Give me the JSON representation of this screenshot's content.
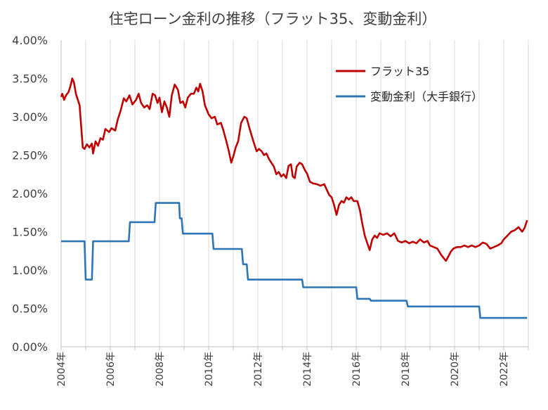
{
  "chart_data": {
    "type": "line",
    "title": "住宅ローン金利の推移（フラット35、変動金利）",
    "xlabel": "",
    "ylabel": "",
    "xlim": [
      2004,
      2023
    ],
    "ylim": [
      0,
      0.04
    ],
    "y_ticks": [
      0,
      0.005,
      0.01,
      0.015,
      0.02,
      0.025,
      0.03,
      0.035,
      0.04
    ],
    "y_tick_labels": [
      "0.00%",
      "0.50%",
      "1.00%",
      "1.50%",
      "2.00%",
      "2.50%",
      "3.00%",
      "3.50%",
      "4.00%"
    ],
    "x_tick_labels": [
      {
        "x": 2004,
        "label": "2004年"
      },
      {
        "x": 2006,
        "label": "2006年"
      },
      {
        "x": 2008,
        "label": "2008年"
      },
      {
        "x": 2010,
        "label": "2010年"
      },
      {
        "x": 2012,
        "label": "2012年"
      },
      {
        "x": 2014,
        "label": "2014年"
      },
      {
        "x": 2016,
        "label": "2016年"
      },
      {
        "x": 2018,
        "label": "2018年"
      },
      {
        "x": 2020,
        "label": "2020年"
      },
      {
        "x": 2022,
        "label": "2022年"
      }
    ],
    "grid": "vertical",
    "legend_position": "top-right",
    "series": [
      {
        "name": "フラット35",
        "color": "#c00000",
        "points": [
          [
            2004.0,
            0.0326
          ],
          [
            2004.05,
            0.033
          ],
          [
            2004.12,
            0.0322
          ],
          [
            2004.2,
            0.0328
          ],
          [
            2004.3,
            0.0332
          ],
          [
            2004.38,
            0.034
          ],
          [
            2004.45,
            0.035
          ],
          [
            2004.52,
            0.0345
          ],
          [
            2004.6,
            0.033
          ],
          [
            2004.75,
            0.0315
          ],
          [
            2004.88,
            0.026
          ],
          [
            2004.95,
            0.0258
          ],
          [
            2005.05,
            0.0264
          ],
          [
            2005.15,
            0.026
          ],
          [
            2005.25,
            0.0265
          ],
          [
            2005.3,
            0.0252
          ],
          [
            2005.4,
            0.0268
          ],
          [
            2005.5,
            0.0262
          ],
          [
            2005.6,
            0.0272
          ],
          [
            2005.7,
            0.027
          ],
          [
            2005.8,
            0.0284
          ],
          [
            2005.95,
            0.028
          ],
          [
            2006.05,
            0.0285
          ],
          [
            2006.2,
            0.0282
          ],
          [
            2006.3,
            0.0296
          ],
          [
            2006.42,
            0.0308
          ],
          [
            2006.55,
            0.0324
          ],
          [
            2006.65,
            0.032
          ],
          [
            2006.78,
            0.0328
          ],
          [
            2006.9,
            0.0316
          ],
          [
            2007.05,
            0.0322
          ],
          [
            2007.15,
            0.033
          ],
          [
            2007.25,
            0.0318
          ],
          [
            2007.38,
            0.0312
          ],
          [
            2007.5,
            0.0315
          ],
          [
            2007.6,
            0.031
          ],
          [
            2007.72,
            0.033
          ],
          [
            2007.82,
            0.0328
          ],
          [
            2007.92,
            0.0318
          ],
          [
            2008.0,
            0.0325
          ],
          [
            2008.1,
            0.0306
          ],
          [
            2008.2,
            0.032
          ],
          [
            2008.3,
            0.0312
          ],
          [
            2008.4,
            0.03
          ],
          [
            2008.5,
            0.0328
          ],
          [
            2008.62,
            0.0342
          ],
          [
            2008.75,
            0.0335
          ],
          [
            2008.85,
            0.0318
          ],
          [
            2008.95,
            0.032
          ],
          [
            2009.05,
            0.0312
          ],
          [
            2009.15,
            0.0325
          ],
          [
            2009.28,
            0.033
          ],
          [
            2009.4,
            0.033
          ],
          [
            2009.5,
            0.0338
          ],
          [
            2009.58,
            0.0333
          ],
          [
            2009.65,
            0.0343
          ],
          [
            2009.75,
            0.0333
          ],
          [
            2009.85,
            0.0315
          ],
          [
            2010.0,
            0.0303
          ],
          [
            2010.12,
            0.0298
          ],
          [
            2010.25,
            0.03
          ],
          [
            2010.35,
            0.029
          ],
          [
            2010.5,
            0.0292
          ],
          [
            2010.6,
            0.0282
          ],
          [
            2010.72,
            0.0268
          ],
          [
            2010.82,
            0.0255
          ],
          [
            2010.92,
            0.024
          ],
          [
            2011.0,
            0.0248
          ],
          [
            2011.1,
            0.026
          ],
          [
            2011.2,
            0.0268
          ],
          [
            2011.32,
            0.0292
          ],
          [
            2011.45,
            0.03
          ],
          [
            2011.55,
            0.0298
          ],
          [
            2011.65,
            0.0286
          ],
          [
            2011.75,
            0.0275
          ],
          [
            2011.85,
            0.0265
          ],
          [
            2011.95,
            0.0255
          ],
          [
            2012.05,
            0.0258
          ],
          [
            2012.15,
            0.0255
          ],
          [
            2012.25,
            0.025
          ],
          [
            2012.35,
            0.0252
          ],
          [
            2012.45,
            0.0245
          ],
          [
            2012.55,
            0.024
          ],
          [
            2012.65,
            0.0235
          ],
          [
            2012.75,
            0.0225
          ],
          [
            2012.85,
            0.0228
          ],
          [
            2012.95,
            0.0222
          ],
          [
            2013.05,
            0.0225
          ],
          [
            2013.15,
            0.022
          ],
          [
            2013.25,
            0.0236
          ],
          [
            2013.35,
            0.0238
          ],
          [
            2013.42,
            0.0222
          ],
          [
            2013.5,
            0.022
          ],
          [
            2013.58,
            0.0235
          ],
          [
            2013.7,
            0.024
          ],
          [
            2013.8,
            0.0238
          ],
          [
            2013.92,
            0.023
          ],
          [
            2014.0,
            0.0226
          ],
          [
            2014.12,
            0.0215
          ],
          [
            2014.25,
            0.0213
          ],
          [
            2014.4,
            0.0212
          ],
          [
            2014.55,
            0.021
          ],
          [
            2014.7,
            0.0212
          ],
          [
            2014.8,
            0.0205
          ],
          [
            2014.9,
            0.0198
          ],
          [
            2015.0,
            0.0195
          ],
          [
            2015.1,
            0.0185
          ],
          [
            2015.2,
            0.0172
          ],
          [
            2015.3,
            0.0185
          ],
          [
            2015.4,
            0.019
          ],
          [
            2015.5,
            0.0188
          ],
          [
            2015.6,
            0.0195
          ],
          [
            2015.7,
            0.0192
          ],
          [
            2015.8,
            0.0195
          ],
          [
            2015.9,
            0.019
          ],
          [
            2016.05,
            0.019
          ],
          [
            2016.15,
            0.0178
          ],
          [
            2016.25,
            0.016
          ],
          [
            2016.35,
            0.0145
          ],
          [
            2016.45,
            0.0135
          ],
          [
            2016.55,
            0.0126
          ],
          [
            2016.65,
            0.014
          ],
          [
            2016.75,
            0.0145
          ],
          [
            2016.85,
            0.0142
          ],
          [
            2016.95,
            0.0148
          ],
          [
            2017.1,
            0.0146
          ],
          [
            2017.25,
            0.0148
          ],
          [
            2017.4,
            0.0144
          ],
          [
            2017.55,
            0.0148
          ],
          [
            2017.7,
            0.0138
          ],
          [
            2017.85,
            0.0136
          ],
          [
            2018.0,
            0.0138
          ],
          [
            2018.15,
            0.0135
          ],
          [
            2018.3,
            0.0137
          ],
          [
            2018.45,
            0.0135
          ],
          [
            2018.6,
            0.014
          ],
          [
            2018.75,
            0.0136
          ],
          [
            2018.9,
            0.0138
          ],
          [
            2019.0,
            0.0132
          ],
          [
            2019.15,
            0.013
          ],
          [
            2019.3,
            0.0128
          ],
          [
            2019.45,
            0.012
          ],
          [
            2019.55,
            0.0116
          ],
          [
            2019.65,
            0.0112
          ],
          [
            2019.75,
            0.0118
          ],
          [
            2019.85,
            0.0124
          ],
          [
            2019.95,
            0.0128
          ],
          [
            2020.1,
            0.013
          ],
          [
            2020.25,
            0.013
          ],
          [
            2020.4,
            0.0132
          ],
          [
            2020.55,
            0.013
          ],
          [
            2020.7,
            0.0132
          ],
          [
            2020.85,
            0.013
          ],
          [
            2021.0,
            0.0132
          ],
          [
            2021.15,
            0.0136
          ],
          [
            2021.3,
            0.0134
          ],
          [
            2021.45,
            0.0128
          ],
          [
            2021.6,
            0.013
          ],
          [
            2021.75,
            0.0132
          ],
          [
            2021.9,
            0.0135
          ],
          [
            2022.0,
            0.014
          ],
          [
            2022.15,
            0.0145
          ],
          [
            2022.3,
            0.015
          ],
          [
            2022.45,
            0.0152
          ],
          [
            2022.6,
            0.0156
          ],
          [
            2022.75,
            0.015
          ],
          [
            2022.85,
            0.0155
          ],
          [
            2022.95,
            0.0165
          ]
        ]
      },
      {
        "name": "変動金利（大手銀行）",
        "color": "#2e75b6",
        "points": [
          [
            2004.0,
            0.01375
          ],
          [
            2004.95,
            0.01375
          ],
          [
            2005.0,
            0.00875
          ],
          [
            2005.25,
            0.00875
          ],
          [
            2005.3,
            0.01375
          ],
          [
            2006.75,
            0.01375
          ],
          [
            2006.8,
            0.01625
          ],
          [
            2007.8,
            0.01625
          ],
          [
            2007.85,
            0.01875
          ],
          [
            2008.8,
            0.01875
          ],
          [
            2008.83,
            0.01675
          ],
          [
            2008.9,
            0.01675
          ],
          [
            2008.95,
            0.01475
          ],
          [
            2010.15,
            0.01475
          ],
          [
            2010.2,
            0.01275
          ],
          [
            2011.35,
            0.01275
          ],
          [
            2011.4,
            0.01075
          ],
          [
            2011.55,
            0.01075
          ],
          [
            2011.6,
            0.00875
          ],
          [
            2013.8,
            0.00875
          ],
          [
            2013.85,
            0.00775
          ],
          [
            2016.0,
            0.00775
          ],
          [
            2016.05,
            0.00625
          ],
          [
            2016.55,
            0.00625
          ],
          [
            2016.6,
            0.006
          ],
          [
            2018.05,
            0.006
          ],
          [
            2018.1,
            0.00525
          ],
          [
            2021.0,
            0.00525
          ],
          [
            2021.05,
            0.00375
          ],
          [
            2022.95,
            0.00375
          ]
        ]
      }
    ]
  }
}
